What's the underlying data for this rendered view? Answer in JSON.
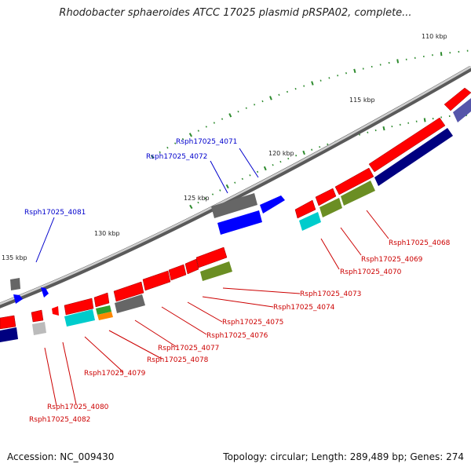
{
  "title": "Rhodobacter sphaeroides ATCC 17025 plasmid pRSPA02, complete...",
  "footer": {
    "accession": "Accession: NC_009430",
    "summary": "Topology: circular; Length: 289,489 bp; Genes: 274"
  },
  "ruler": [
    {
      "label": "110 kbp"
    },
    {
      "label": "115 kbp"
    },
    {
      "label": "120 kbp"
    },
    {
      "label": "125 kbp"
    },
    {
      "label": "130 kbp"
    },
    {
      "label": "135 kbp"
    }
  ],
  "gene_labels": [
    {
      "label": "Rsph17025_4071",
      "color": "#0000cc"
    },
    {
      "label": "Rsph17025_4072",
      "color": "#0000cc"
    },
    {
      "label": "Rsph17025_4081",
      "color": "#0000cc"
    },
    {
      "label": "Rsph17025_4068",
      "color": "#cc0000"
    },
    {
      "label": "Rsph17025_4069",
      "color": "#cc0000"
    },
    {
      "label": "Rsph17025_4070",
      "color": "#cc0000"
    },
    {
      "label": "Rsph17025_4073",
      "color": "#cc0000"
    },
    {
      "label": "Rsph17025_4074",
      "color": "#cc0000"
    },
    {
      "label": "Rsph17025_4075",
      "color": "#cc0000"
    },
    {
      "label": "Rsph17025_4076",
      "color": "#cc0000"
    },
    {
      "label": "Rsph17025_4077",
      "color": "#cc0000"
    },
    {
      "label": "Rsph17025_4078",
      "color": "#cc0000"
    },
    {
      "label": "Rsph17025_4079",
      "color": "#cc0000"
    },
    {
      "label": "Rsph17025_4080",
      "color": "#cc0000"
    },
    {
      "label": "Rsph17025_4082",
      "color": "#cc0000"
    }
  ],
  "colors": {
    "backbone": "#8c8c8c",
    "forward_cds": "#ff0000",
    "reverse_cds": "#000080",
    "blue_feature": "#0000ff",
    "grey_feature": "#666666",
    "olive_feature": "#6b8e23",
    "cyan_feature": "#00cccc",
    "tick": "#2e8b2e"
  }
}
